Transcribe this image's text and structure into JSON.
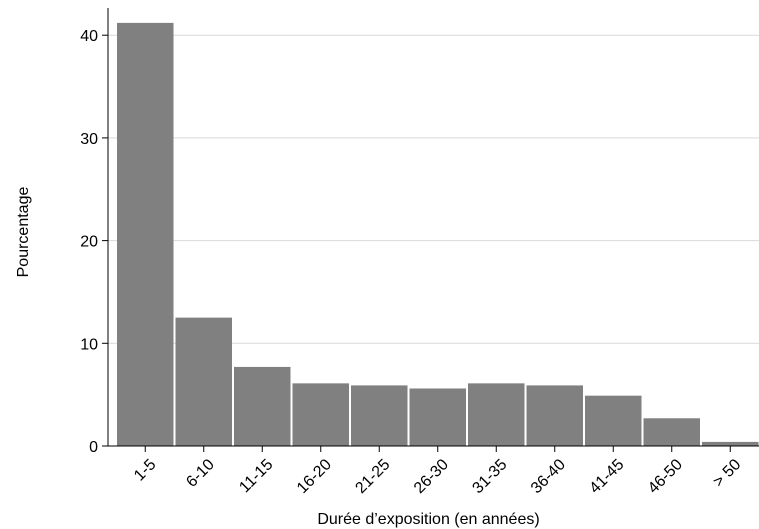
{
  "chart_data": {
    "type": "bar",
    "title": "",
    "xlabel": "Durée d’exposition (en années)",
    "ylabel": "Pourcentage",
    "categories": [
      "1-5",
      "6-10",
      "11-15",
      "16-20",
      "21-25",
      "26-30",
      "31-35",
      "36-40",
      "41-45",
      "46-50",
      "> 50"
    ],
    "values": [
      41.2,
      12.5,
      7.7,
      6.1,
      5.9,
      5.6,
      6.1,
      5.9,
      4.9,
      2.7,
      0.4
    ],
    "yticks": [
      0,
      10,
      20,
      30,
      40
    ],
    "ylim": [
      0,
      43
    ],
    "grid": true,
    "legend": "none",
    "bar_color": "#808080",
    "grid_color": "#d9d9d9",
    "axis_color": "#000000"
  }
}
